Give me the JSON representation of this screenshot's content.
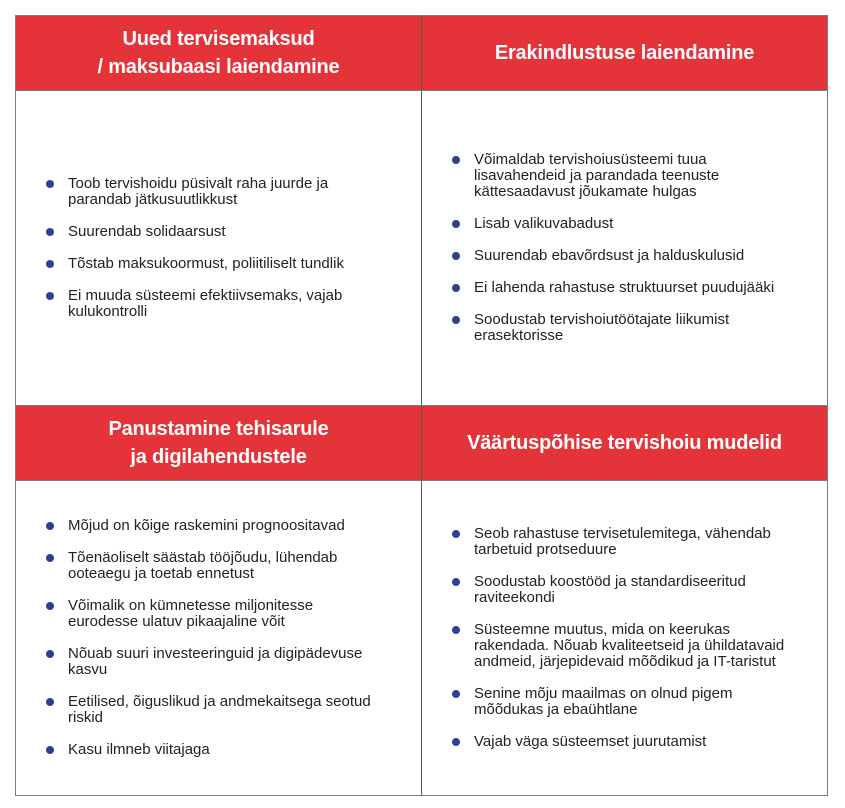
{
  "colors": {
    "header": "#e5333a",
    "bullet": "#2e3f8f"
  },
  "cells": [
    {
      "title": "Uued tervisemaksud\n/ maksubaasi laiendamine",
      "items": [
        "Toob tervishoidu püsivalt raha juurde ja\nparandab jätkusuutlikkust",
        "Suurendab solidaarsust",
        "Tõstab maksukoormust, poliitiliselt tundlik",
        "Ei muuda süsteemi efektiivsemaks, vajab\nkulukontrolli"
      ]
    },
    {
      "title": "Erakindlustuse laiendamine",
      "items": [
        "Võimaldab tervishoiusüsteemi tuua\nlisavahendeid ja parandada teenuste\nkättesaadavust jõukamate hulgas",
        "Lisab valikuvabadust",
        "Suurendab ebavõrdsust ja halduskulusid",
        "Ei lahenda rahastuse struktuurset puudujääki",
        "Soodustab tervishoiutöötajate liikumist\nerasektorisse"
      ]
    },
    {
      "title": "Panustamine tehisarule\nja digilahendustele",
      "items": [
        "Mõjud on kõige raskemini prognoositavad",
        "Tõenäoliselt säästab tööjõudu, lühendab\nooteaegu ja toetab ennetust",
        "Võimalik on kümnetesse miljonitesse\neurodesse ulatuv pikaajaline võit",
        "Nõuab suuri investeeringuid ja digipädevuse\nkasvu",
        "Eetilised, õiguslikud ja andmekaitsega seotud\nriskid",
        "Kasu ilmneb viitajaga"
      ]
    },
    {
      "title": "Väärtuspõhise tervishoiu mudelid",
      "items": [
        "Seob rahastuse tervisetulemitega, vähendab\ntarbetuid protseduure",
        "Soodustab koostööd ja standardiseeritud\nraviteekondi",
        "Süsteemne muutus, mida on keerukas\nrakendada. Nõuab kvaliteetseid ja ühildatavaid\nandmeid, järjepidevaid mõõdikud ja IT-taristut",
        "Senine mõju maailmas on olnud pigem\nmõõdukas ja ebaühtlane",
        "Vajab väga süsteemset juurutamist"
      ]
    }
  ]
}
